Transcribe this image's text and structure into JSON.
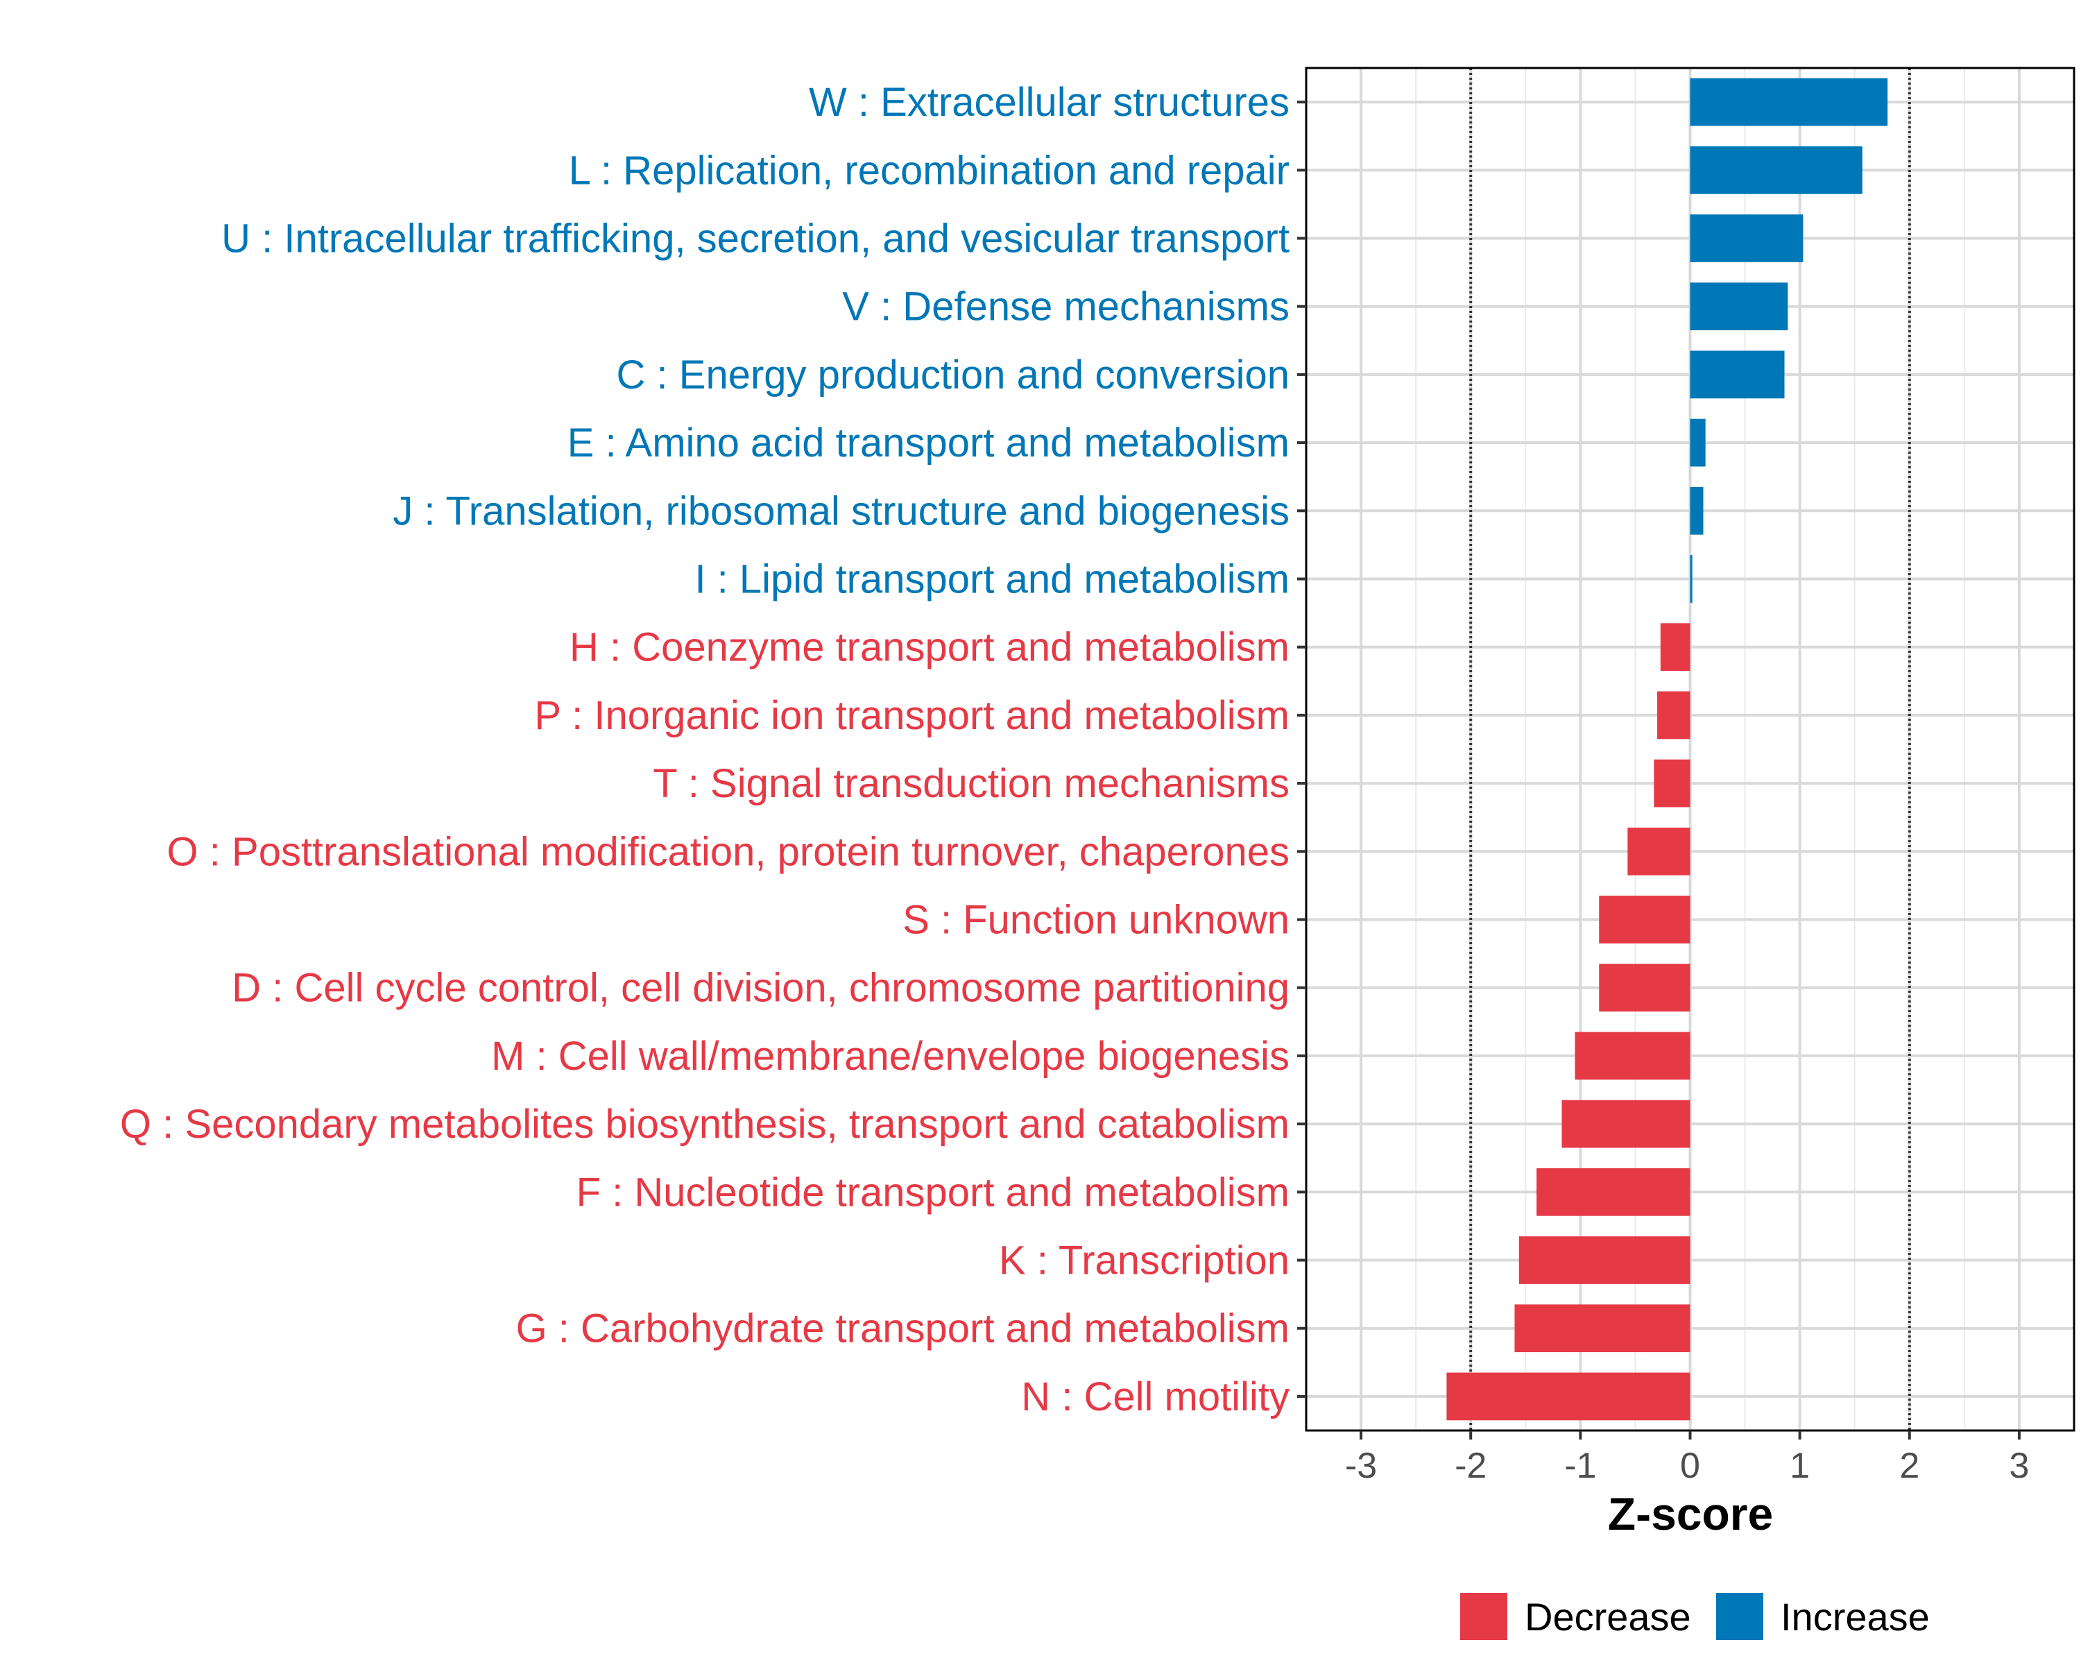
{
  "chart_data": {
    "type": "bar",
    "orientation": "horizontal",
    "xlabel": "Z-score",
    "xlim": [
      -3.5,
      3.5
    ],
    "xticks": [
      -3,
      -2,
      -1,
      0,
      1,
      2,
      3
    ],
    "tick_labels": [
      "-3",
      "-2",
      "-1",
      "0",
      "1",
      "2",
      "3"
    ],
    "reference_lines": [
      -2,
      2
    ],
    "grid": true,
    "colors": {
      "Decrease": "#e63946",
      "Increase": "#0077b6"
    },
    "legend": {
      "position": "bottom",
      "entries": [
        "Decrease",
        "Increase"
      ]
    },
    "categories": [
      "W : Extracellular structures",
      "L : Replication, recombination and repair",
      "U : Intracellular trafficking, secretion, and vesicular transport",
      "V : Defense mechanisms",
      "C : Energy production and conversion",
      "E : Amino acid transport and metabolism",
      "J : Translation, ribosomal structure and biogenesis",
      "I : Lipid transport and metabolism",
      "H : Coenzyme transport and metabolism",
      "P : Inorganic ion transport and metabolism",
      "T : Signal transduction mechanisms",
      "O : Posttranslational modification, protein turnover, chaperones",
      "S : Function unknown",
      "D : Cell cycle control, cell division, chromosome partitioning",
      "M : Cell wall/membrane/envelope biogenesis",
      "Q : Secondary metabolites biosynthesis, transport and catabolism",
      "F : Nucleotide transport and metabolism",
      "K : Transcription",
      "G : Carbohydrate transport and metabolism",
      "N : Cell motility"
    ],
    "values": [
      1.8,
      1.57,
      1.03,
      0.89,
      0.86,
      0.14,
      0.12,
      0.02,
      -0.27,
      -0.3,
      -0.33,
      -0.57,
      -0.83,
      -0.83,
      -1.05,
      -1.17,
      -1.4,
      -1.56,
      -1.6,
      -2.22
    ],
    "groups": [
      "Increase",
      "Increase",
      "Increase",
      "Increase",
      "Increase",
      "Increase",
      "Increase",
      "Increase",
      "Decrease",
      "Decrease",
      "Decrease",
      "Decrease",
      "Decrease",
      "Decrease",
      "Decrease",
      "Decrease",
      "Decrease",
      "Decrease",
      "Decrease",
      "Decrease"
    ]
  }
}
